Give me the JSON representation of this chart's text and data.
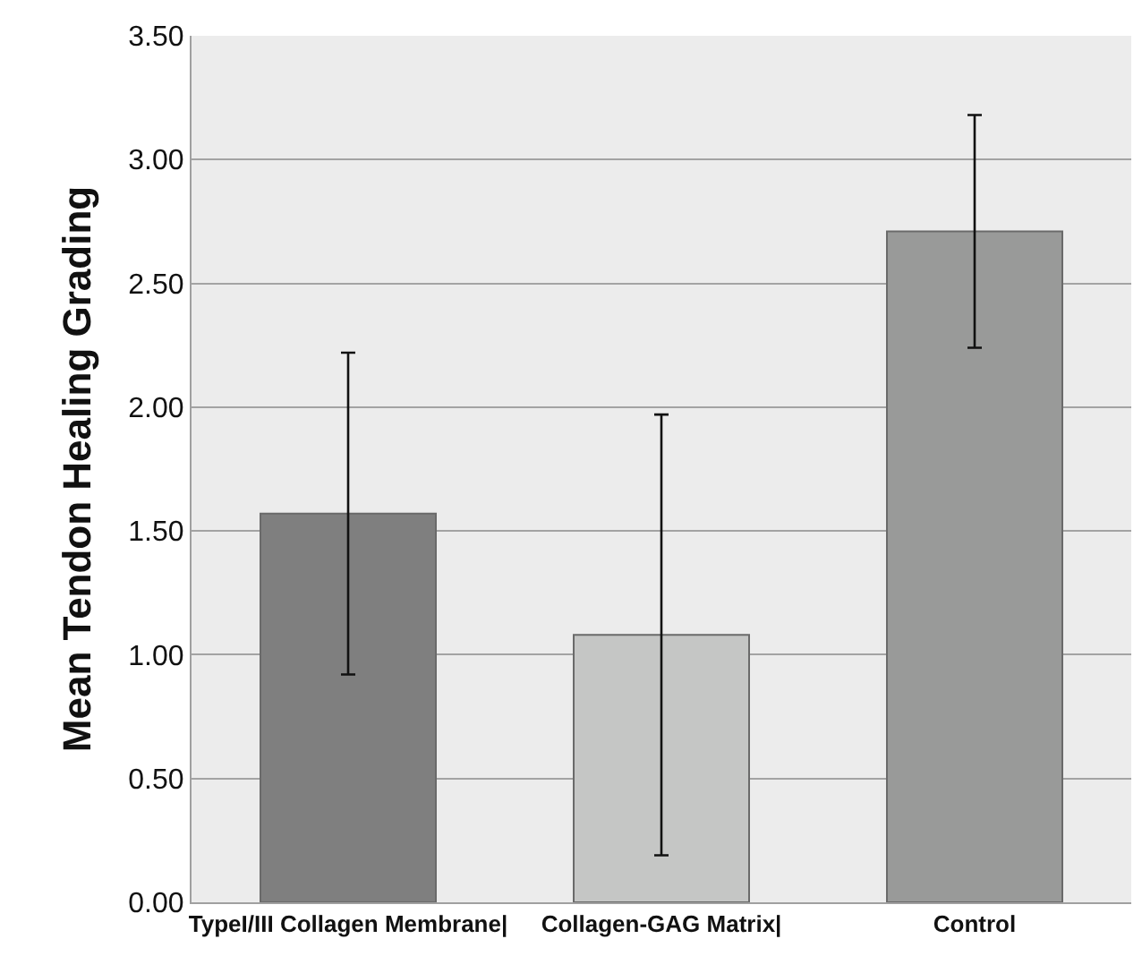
{
  "chart_data": {
    "type": "bar",
    "ylabel": "Mean Tendon Healing Grading",
    "categories": [
      "TypeI/III Collagen Membrane|",
      "Collagen-GAG Matrix|",
      "Control"
    ],
    "values": [
      1.57,
      1.08,
      2.71
    ],
    "colors": [
      "#7f7f7f",
      "#c5c6c5",
      "#999a99"
    ],
    "errors": [
      0.65,
      0.89,
      0.47
    ],
    "ylim": [
      0,
      3.5
    ],
    "yticks": [
      {
        "value": 0,
        "label": "0.00"
      },
      {
        "value": 0.5,
        "label": "0.50"
      },
      {
        "value": 1,
        "label": "1.00"
      },
      {
        "value": 1.5,
        "label": "1.50"
      },
      {
        "value": 2,
        "label": "2.00"
      },
      {
        "value": 2.5,
        "label": "2.50"
      },
      {
        "value": 3,
        "label": "3.00"
      },
      {
        "value": 3.5,
        "label": "3.50"
      }
    ],
    "grid": "y"
  }
}
